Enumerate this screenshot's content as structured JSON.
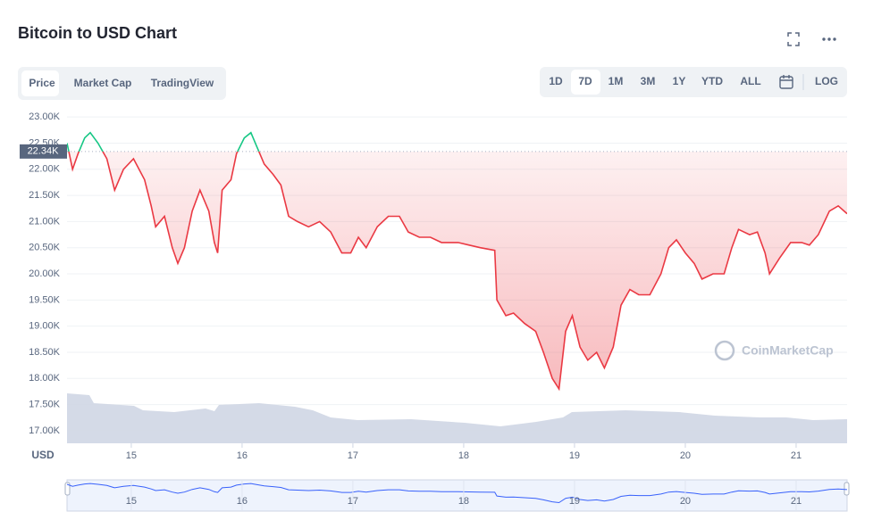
{
  "header": {
    "title": "Bitcoin to USD Chart"
  },
  "tabs": [
    "Price",
    "Market Cap",
    "TradingView"
  ],
  "ranges": [
    "1D",
    "7D",
    "1M",
    "3M",
    "1Y",
    "YTD",
    "ALL"
  ],
  "log": "LOG",
  "watermark": "CoinMarketCap",
  "chart_data": {
    "type": "line",
    "axis_unit": "USD",
    "x": [
      14.42,
      14.47,
      14.52,
      14.58,
      14.63,
      14.7,
      14.78,
      14.85,
      14.93,
      15.02,
      15.12,
      15.18,
      15.22,
      15.3,
      15.37,
      15.42,
      15.48,
      15.55,
      15.62,
      15.7,
      15.75,
      15.78,
      15.82,
      15.9,
      15.95,
      16.02,
      16.08,
      16.13,
      16.2,
      16.28,
      16.35,
      16.42,
      16.5,
      16.6,
      16.7,
      16.8,
      16.9,
      16.98,
      17.05,
      17.12,
      17.22,
      17.32,
      17.42,
      17.5,
      17.6,
      17.7,
      17.8,
      17.95,
      18.05,
      18.15,
      18.28,
      18.3,
      18.38,
      18.45,
      18.55,
      18.65,
      18.72,
      18.8,
      18.86,
      18.92,
      18.98,
      19.05,
      19.12,
      19.2,
      19.27,
      19.35,
      19.42,
      19.5,
      19.58,
      19.68,
      19.78,
      19.85,
      19.92,
      20.0,
      20.08,
      20.15,
      20.25,
      20.35,
      20.42,
      20.48,
      20.58,
      20.65,
      20.72,
      20.76,
      20.85,
      20.95,
      21.05,
      21.12,
      21.2,
      21.3,
      21.38,
      21.46
    ],
    "values": [
      22500,
      22000,
      22300,
      22600,
      22700,
      22500,
      22200,
      21600,
      22000,
      22200,
      21800,
      21300,
      20900,
      21100,
      20500,
      20200,
      20500,
      21200,
      21600,
      21200,
      20600,
      20400,
      21600,
      21800,
      22300,
      22600,
      22700,
      22450,
      22100,
      21900,
      21700,
      21100,
      21000,
      20900,
      21000,
      20800,
      20400,
      20400,
      20700,
      20500,
      20900,
      21100,
      21100,
      20800,
      20700,
      20700,
      20600,
      20600,
      20550,
      20500,
      20450,
      19500,
      19200,
      19250,
      19050,
      18900,
      18500,
      18000,
      17800,
      18900,
      19200,
      18600,
      18350,
      18500,
      18200,
      18600,
      19400,
      19700,
      19600,
      19600,
      20000,
      20500,
      20650,
      20400,
      20200,
      19900,
      20000,
      20000,
      20500,
      20850,
      20750,
      20800,
      20400,
      20000,
      20300,
      20600,
      20600,
      20550,
      20750,
      21200,
      21300,
      21150
    ],
    "color_up": "#16c784",
    "color_down": "#ea3943",
    "reference": {
      "value": 22340,
      "label": "22.34K"
    },
    "xlim": [
      14.42,
      21.46
    ],
    "xticks": [
      15,
      16,
      17,
      18,
      19,
      20,
      21
    ],
    "ylim": [
      16760,
      23190
    ],
    "yticks": [
      {
        "value": 17000,
        "label": "17.00K"
      },
      {
        "value": 17500,
        "label": "17.50K"
      },
      {
        "value": 18000,
        "label": "18.00K"
      },
      {
        "value": 18500,
        "label": "18.50K"
      },
      {
        "value": 19000,
        "label": "19.00K"
      },
      {
        "value": 19500,
        "label": "19.50K"
      },
      {
        "value": 20000,
        "label": "20.00K"
      },
      {
        "value": 20500,
        "label": "20.50K"
      },
      {
        "value": 21000,
        "label": "21.00K"
      },
      {
        "value": 21500,
        "label": "21.50K"
      },
      {
        "value": 22000,
        "label": "22.00K"
      },
      {
        "value": 22500,
        "label": "22.50K"
      },
      {
        "value": 23000,
        "label": "23.00K"
      }
    ],
    "grid": true
  }
}
